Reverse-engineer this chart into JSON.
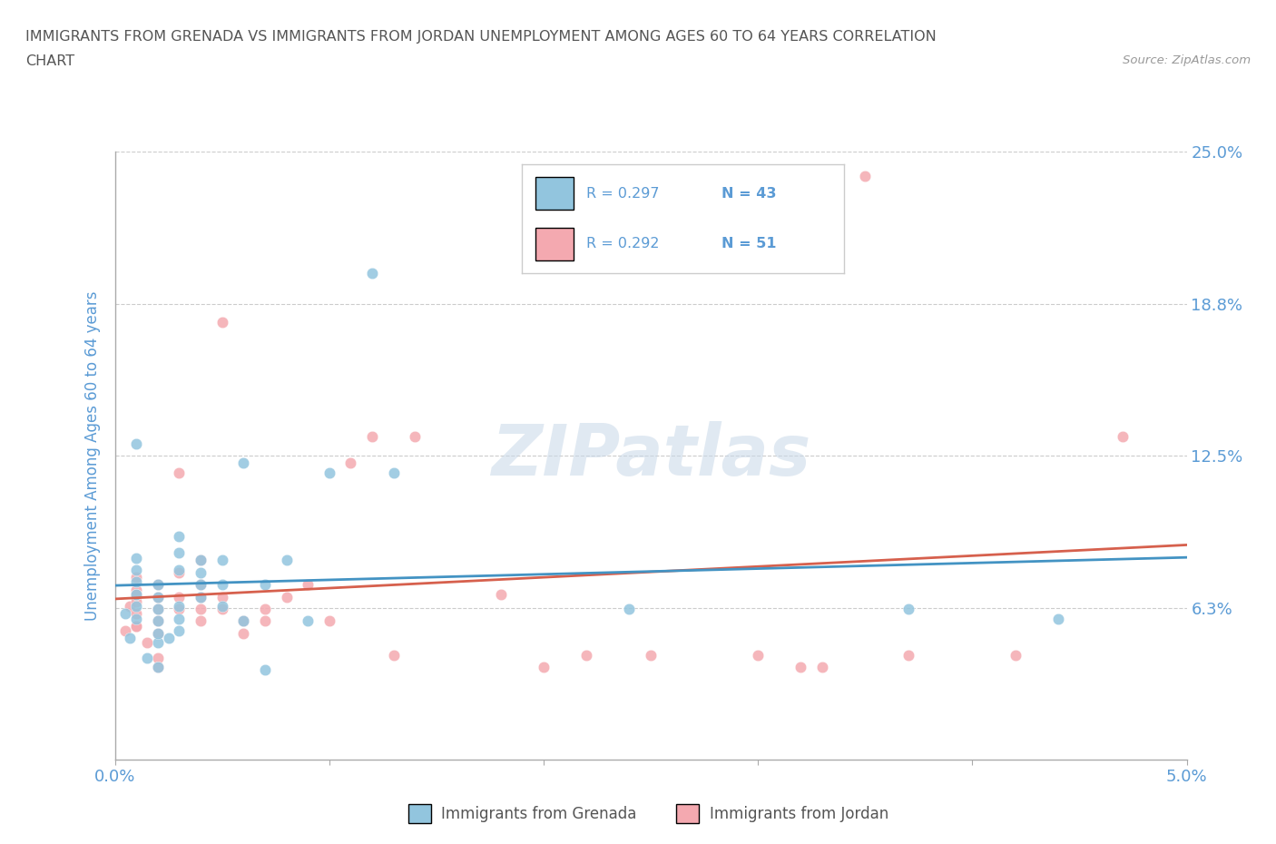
{
  "title_line1": "IMMIGRANTS FROM GRENADA VS IMMIGRANTS FROM JORDAN UNEMPLOYMENT AMONG AGES 60 TO 64 YEARS CORRELATION",
  "title_line2": "CHART",
  "source": "Source: ZipAtlas.com",
  "ylabel": "Unemployment Among Ages 60 to 64 years",
  "xlim": [
    0.0,
    0.05
  ],
  "ylim": [
    0.0,
    0.25
  ],
  "xticks": [
    0.0,
    0.01,
    0.02,
    0.03,
    0.04,
    0.05
  ],
  "xticklabels": [
    "0.0%",
    "",
    "",
    "",
    "",
    "5.0%"
  ],
  "ytick_positions": [
    0.0,
    0.0625,
    0.125,
    0.1875,
    0.25
  ],
  "ytick_labels": [
    "",
    "6.3%",
    "12.5%",
    "18.8%",
    "25.0%"
  ],
  "watermark": "ZIPatlas",
  "grenada_color": "#92c5de",
  "jordan_color": "#f4a9b0",
  "grenada_line_color": "#4393c3",
  "jordan_line_color": "#d6604d",
  "legend_r_grenada": "R = 0.297",
  "legend_n_grenada": "N = 43",
  "legend_r_jordan": "R = 0.292",
  "legend_n_jordan": "N = 51",
  "legend_label_grenada": "Immigrants from Grenada",
  "legend_label_jordan": "Immigrants from Jordan",
  "grenada_x": [
    0.0005,
    0.0007,
    0.001,
    0.001,
    0.001,
    0.001,
    0.001,
    0.001,
    0.001,
    0.0015,
    0.002,
    0.002,
    0.002,
    0.002,
    0.002,
    0.002,
    0.002,
    0.0025,
    0.003,
    0.003,
    0.003,
    0.003,
    0.003,
    0.003,
    0.004,
    0.004,
    0.004,
    0.004,
    0.005,
    0.005,
    0.005,
    0.006,
    0.006,
    0.007,
    0.007,
    0.008,
    0.009,
    0.01,
    0.012,
    0.013,
    0.024,
    0.037,
    0.044
  ],
  "grenada_y": [
    0.06,
    0.05,
    0.058,
    0.063,
    0.068,
    0.073,
    0.078,
    0.083,
    0.13,
    0.042,
    0.048,
    0.052,
    0.057,
    0.062,
    0.067,
    0.072,
    0.038,
    0.05,
    0.053,
    0.058,
    0.063,
    0.078,
    0.085,
    0.092,
    0.067,
    0.072,
    0.077,
    0.082,
    0.063,
    0.072,
    0.082,
    0.057,
    0.122,
    0.037,
    0.072,
    0.082,
    0.057,
    0.118,
    0.2,
    0.118,
    0.062,
    0.062,
    0.058
  ],
  "jordan_x": [
    0.0005,
    0.0007,
    0.001,
    0.001,
    0.001,
    0.001,
    0.001,
    0.001,
    0.001,
    0.0015,
    0.002,
    0.002,
    0.002,
    0.002,
    0.002,
    0.002,
    0.002,
    0.003,
    0.003,
    0.003,
    0.003,
    0.004,
    0.004,
    0.004,
    0.004,
    0.004,
    0.005,
    0.005,
    0.005,
    0.006,
    0.006,
    0.007,
    0.007,
    0.008,
    0.009,
    0.01,
    0.011,
    0.012,
    0.013,
    0.014,
    0.018,
    0.02,
    0.022,
    0.025,
    0.03,
    0.032,
    0.033,
    0.035,
    0.037,
    0.042,
    0.047
  ],
  "jordan_y": [
    0.053,
    0.063,
    0.055,
    0.06,
    0.065,
    0.07,
    0.075,
    0.068,
    0.055,
    0.048,
    0.052,
    0.057,
    0.062,
    0.067,
    0.072,
    0.042,
    0.038,
    0.062,
    0.067,
    0.077,
    0.118,
    0.057,
    0.062,
    0.067,
    0.072,
    0.082,
    0.062,
    0.067,
    0.18,
    0.052,
    0.057,
    0.057,
    0.062,
    0.067,
    0.072,
    0.057,
    0.122,
    0.133,
    0.043,
    0.133,
    0.068,
    0.038,
    0.043,
    0.043,
    0.043,
    0.038,
    0.038,
    0.24,
    0.043,
    0.043,
    0.133
  ],
  "background_color": "#ffffff",
  "grid_color": "#cccccc",
  "title_color": "#555555",
  "ylabel_color": "#5b9bd5",
  "tick_label_color": "#5b9bd5"
}
